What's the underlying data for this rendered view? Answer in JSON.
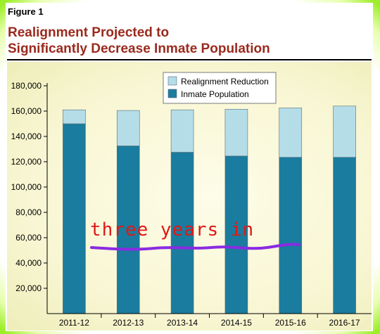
{
  "figure_label": "Figure 1",
  "title_lines": [
    "Realignment Projected to",
    "Significantly Decrease Inmate Population"
  ],
  "annotation": "three years in",
  "colors": {
    "inmate_population": "#1a7c9e",
    "realignment_reduction": "#b4dde8",
    "title": "#9b2a1e",
    "annotation_text": "#e01818",
    "annotation_underline": "#8a2be2",
    "frame_glow": "#9dee2a"
  },
  "chart_data": {
    "type": "bar",
    "stacked": true,
    "categories": [
      "2011-12",
      "2012-13",
      "2013-14",
      "2014-15",
      "2015-16",
      "2016-17"
    ],
    "series": [
      {
        "name": "Inmate Population",
        "values": [
          150000,
          132500,
          127500,
          124500,
          123500,
          123500
        ]
      },
      {
        "name": "Realignment Reduction",
        "values": [
          11000,
          28000,
          33500,
          37000,
          39000,
          40500
        ]
      }
    ],
    "y_ticks": [
      20000,
      40000,
      60000,
      80000,
      100000,
      120000,
      140000,
      160000,
      180000
    ],
    "y_tick_labels": [
      "20,000",
      "40,000",
      "60,000",
      "80,000",
      "100,000",
      "120,000",
      "140,000",
      "160,000",
      "180,000"
    ],
    "ylim": [
      0,
      180000
    ],
    "legend": {
      "placement": "top-center",
      "order": [
        "Realignment Reduction",
        "Inmate Population"
      ]
    },
    "grid": false
  }
}
